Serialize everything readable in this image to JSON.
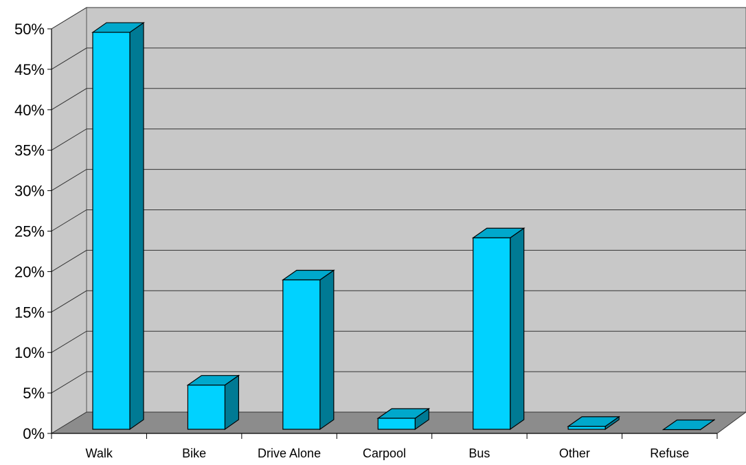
{
  "chart_data": {
    "type": "bar",
    "title": "",
    "xlabel": "",
    "ylabel": "",
    "categories": [
      "Walk",
      "Bike",
      "Drive Alone",
      "Carpool",
      "Bus",
      "Other",
      "Refuse"
    ],
    "values": [
      49.4,
      5.8,
      18.8,
      1.7,
      24.0,
      0.7,
      0.3
    ],
    "ylim": [
      0,
      50
    ],
    "y_ticks": [
      "0%",
      "5%",
      "10%",
      "15%",
      "20%",
      "25%",
      "30%",
      "35%",
      "40%",
      "45%",
      "50%"
    ],
    "grid": true,
    "legend": "none",
    "colors": {
      "bar_front": "#00d2ff",
      "bar_top": "#00a8cc",
      "bar_side": "#007a94",
      "back_wall": "#c8c8c8",
      "floor": "#8c8c8c"
    }
  }
}
